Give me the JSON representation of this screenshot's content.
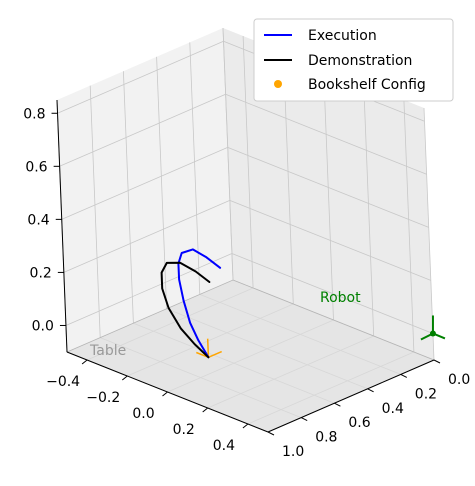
{
  "chart_data": {
    "type": "line3d",
    "title": "",
    "xlabel": "",
    "ylabel": "",
    "zlabel": "",
    "xlim": [
      -0.5,
      0.5
    ],
    "ylim": [
      0.0,
      1.0
    ],
    "zlim": [
      -0.1,
      0.85
    ],
    "x_ticks": [
      "−0.4",
      "−0.2",
      "0.0",
      "0.2",
      "0.4"
    ],
    "y_ticks": [
      "0.0",
      "0.2",
      "0.4",
      "0.6",
      "0.8",
      "1.0"
    ],
    "z_ticks": [
      "0.0",
      "0.2",
      "0.4",
      "0.6",
      "0.8"
    ],
    "grid": true,
    "legend_position": "top-right",
    "series": [
      {
        "name": "Execution",
        "kind": "line",
        "color": "#0000ff",
        "points": [
          [
            0.06,
            0.82,
            0.0
          ],
          [
            0.03,
            0.84,
            0.06
          ],
          [
            0.0,
            0.85,
            0.12
          ],
          [
            -0.02,
            0.86,
            0.2
          ],
          [
            -0.03,
            0.87,
            0.28
          ],
          [
            -0.03,
            0.87,
            0.34
          ],
          [
            -0.02,
            0.86,
            0.38
          ],
          [
            0.02,
            0.84,
            0.4
          ],
          [
            0.07,
            0.82,
            0.38
          ],
          [
            0.12,
            0.8,
            0.35
          ]
        ]
      },
      {
        "name": "Demonstration",
        "kind": "line",
        "color": "#000000",
        "points": [
          [
            0.06,
            0.82,
            0.0
          ],
          [
            0.01,
            0.84,
            0.04
          ],
          [
            -0.04,
            0.86,
            0.09
          ],
          [
            -0.08,
            0.88,
            0.16
          ],
          [
            -0.1,
            0.89,
            0.23
          ],
          [
            -0.1,
            0.89,
            0.29
          ],
          [
            -0.08,
            0.88,
            0.33
          ],
          [
            -0.03,
            0.86,
            0.34
          ],
          [
            0.03,
            0.84,
            0.32
          ],
          [
            0.08,
            0.82,
            0.29
          ]
        ]
      },
      {
        "name": "Bookshelf Config",
        "kind": "points",
        "color": "#ffa500",
        "points": []
      }
    ],
    "bookshelf_segments": [
      {
        "color": "#ffa500",
        "points": [
          [
            0.06,
            0.82,
            0.0
          ],
          [
            0.06,
            0.82,
            0.07
          ]
        ]
      },
      {
        "color": "#ffa500",
        "points": [
          [
            0.06,
            0.82,
            0.0
          ],
          [
            0.0,
            0.82,
            0.0
          ]
        ]
      },
      {
        "color": "#ffa500",
        "points": [
          [
            0.06,
            0.82,
            0.0
          ],
          [
            0.06,
            0.74,
            0.0
          ]
        ]
      }
    ],
    "robot": {
      "label": "Robot",
      "color": "#008000",
      "position": [
        0.5,
        0.0,
        0.0
      ]
    },
    "table": {
      "label": "Table",
      "color": "#999999",
      "plane_color": "#e6e6e6"
    }
  }
}
